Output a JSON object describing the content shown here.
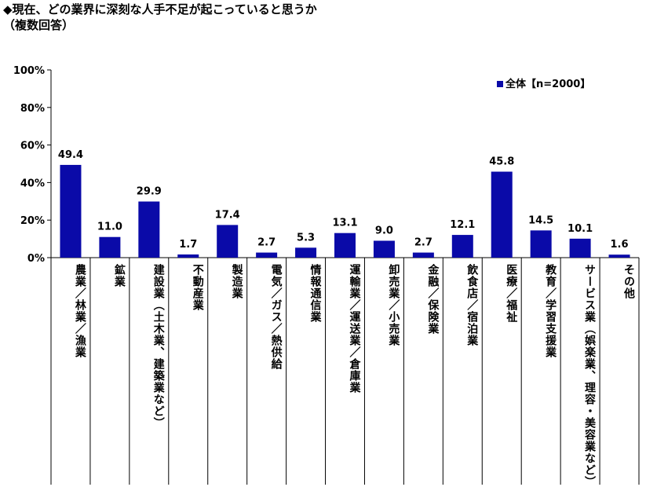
{
  "title": "◆現在、どの業界に深刻な人手不足が起こっていると思うか",
  "subtitle": "（複数回答）",
  "chart_data": {
    "type": "bar",
    "ylim": [
      0,
      100
    ],
    "y_ticks": [
      "0%",
      "20%",
      "40%",
      "60%",
      "80%",
      "100%"
    ],
    "grid": false,
    "legend_position": "top-right",
    "categories": [
      "農業／林業／漁業",
      "鉱業",
      "建設業（土木業、建築業など）",
      "不動産業",
      "製造業",
      "電気／ガス／熱供給",
      "情報通信業",
      "運輸業／運送業／倉庫業",
      "卸売業／小売業",
      "金融／保険業",
      "飲食店／宿泊業",
      "医療／福祉",
      "教育／学習支援業",
      "サービス業（娯楽業、理容・美容業など）",
      "その他"
    ],
    "series": [
      {
        "name": "全体【n=2000】",
        "color": "#0a0aa8",
        "values": [
          49.4,
          11.0,
          29.9,
          1.7,
          17.4,
          2.7,
          5.3,
          13.1,
          9.0,
          2.7,
          12.1,
          45.8,
          14.5,
          10.1,
          1.6
        ],
        "labels": [
          "49.4",
          "11.0",
          "29.9",
          "1.7",
          "17.4",
          "2.7",
          "5.3",
          "13.1",
          "9.0",
          "2.7",
          "12.1",
          "45.8",
          "14.5",
          "10.1",
          "1.6"
        ]
      }
    ]
  }
}
